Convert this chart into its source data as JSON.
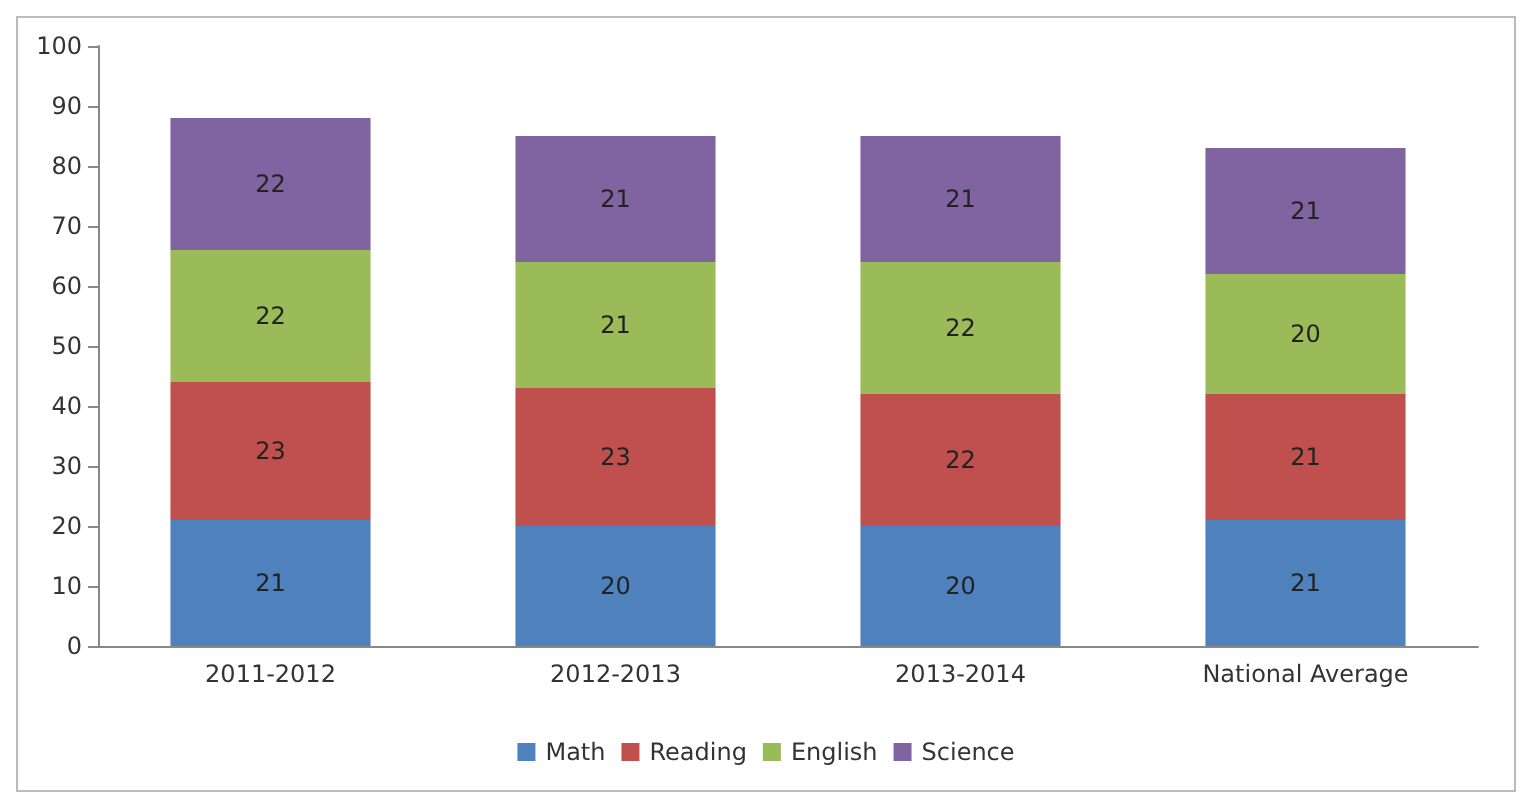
{
  "chart_data": {
    "type": "bar",
    "stacked": true,
    "data_labels": true,
    "legend": "bottom",
    "grid": false,
    "categories": [
      "2011-2012",
      "2012-2013",
      "2013-2014",
      "National Average"
    ],
    "series": [
      {
        "name": "Math",
        "color": "#4f81bd",
        "values": [
          21,
          20,
          20,
          21
        ]
      },
      {
        "name": "Reading",
        "color": "#c0504d",
        "values": [
          23,
          23,
          22,
          21
        ]
      },
      {
        "name": "English",
        "color": "#9bbb59",
        "values": [
          22,
          21,
          22,
          20
        ]
      },
      {
        "name": "Science",
        "color": "#8064a2",
        "values": [
          22,
          21,
          21,
          21
        ]
      }
    ],
    "ylim": [
      0,
      100
    ],
    "yticks": [
      0,
      10,
      20,
      30,
      40,
      50,
      60,
      70,
      80,
      90,
      100
    ]
  }
}
